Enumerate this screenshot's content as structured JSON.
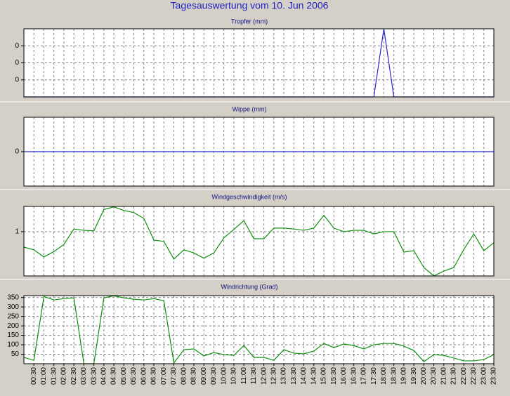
{
  "title": "Tagesauswertung vom 10. Jun 2006",
  "chart_data": [
    {
      "type": "line",
      "title": "Tropfer (mm)",
      "color": "#2828d0",
      "grid": true,
      "ylim": [
        0,
        0.2
      ],
      "yticks": [
        {
          "value": 0.05,
          "label": "0"
        },
        {
          "value": 0.1,
          "label": "0"
        },
        {
          "value": 0.15,
          "label": "0"
        }
      ],
      "values": [
        0,
        0,
        0,
        0,
        0,
        0,
        0,
        0,
        0,
        0,
        0,
        0,
        0,
        0,
        0,
        0,
        0,
        0,
        0,
        0,
        0,
        0,
        0,
        0,
        0,
        0,
        0,
        0,
        0,
        0,
        0,
        0,
        0,
        0,
        0,
        0,
        0.2,
        0,
        0,
        0,
        0,
        0,
        0,
        0,
        0,
        0,
        0,
        0
      ]
    },
    {
      "type": "line",
      "title": "Wippe (mm)",
      "color": "#2828d0",
      "grid": true,
      "ylim": [
        -1,
        1
      ],
      "yticks": [
        0
      ],
      "values": [
        0,
        0,
        0,
        0,
        0,
        0,
        0,
        0,
        0,
        0,
        0,
        0,
        0,
        0,
        0,
        0,
        0,
        0,
        0,
        0,
        0,
        0,
        0,
        0,
        0,
        0,
        0,
        0,
        0,
        0,
        0,
        0,
        0,
        0,
        0,
        0,
        0,
        0,
        0,
        0,
        0,
        0,
        0,
        0,
        0,
        0,
        0,
        0
      ]
    },
    {
      "type": "line",
      "title": "Windgeschwindigkeit (m/s)",
      "color": "#109010",
      "grid": true,
      "ylim": [
        0,
        1.57
      ],
      "yticks": [
        1
      ],
      "values": [
        0.65,
        0.59,
        0.43,
        0.55,
        0.71,
        1.06,
        1.03,
        1.02,
        1.5,
        1.56,
        1.48,
        1.43,
        1.3,
        0.81,
        0.78,
        0.38,
        0.59,
        0.52,
        0.4,
        0.52,
        0.86,
        1.05,
        1.25,
        0.84,
        0.84,
        1.08,
        1.08,
        1.06,
        1.03,
        1.08,
        1.37,
        1.08,
        1.0,
        1.03,
        1.03,
        0.95,
        1.0,
        1.0,
        0.54,
        0.57,
        0.19,
        0,
        0.11,
        0.19,
        0.6,
        0.95,
        0.57,
        0.75
      ]
    },
    {
      "type": "line",
      "title": "Windrichtung (Grad)",
      "color": "#109010",
      "grid": true,
      "ylim": [
        0,
        360
      ],
      "yticks": [
        50,
        100,
        150,
        200,
        250,
        300,
        350
      ],
      "values": [
        33,
        18,
        355,
        337,
        344,
        348,
        0,
        0,
        348,
        359,
        348,
        341,
        337,
        344,
        333,
        4,
        74,
        78,
        41,
        59,
        48,
        44,
        96,
        33,
        33,
        18,
        74,
        56,
        52,
        67,
        107,
        85,
        104,
        96,
        78,
        100,
        107,
        107,
        93,
        70,
        11,
        48,
        44,
        30,
        15,
        15,
        22,
        48
      ],
      "categories": [
        null,
        "00:30",
        "01:00",
        "01:30",
        "02:00",
        "02:30",
        "03:00",
        "03:30",
        "04:00",
        "04:30",
        "05:00",
        "05:30",
        "06:00",
        "06:30",
        "07:00",
        "07:30",
        "08:00",
        "08:30",
        "09:00",
        "09:30",
        "10:00",
        "10:30",
        "11:00",
        "11:30",
        "12:00",
        "12:30",
        "13:00",
        "13:30",
        "14:00",
        "14:30",
        "15:00",
        "15:30",
        "16:00",
        "16:30",
        "17:00",
        "17:30",
        "18:00",
        "18:30",
        "19:00",
        "19:30",
        "20:00",
        "20:30",
        "21:00",
        "21:30",
        "22:00",
        "22:30",
        "23:00",
        "23:30"
      ]
    }
  ]
}
